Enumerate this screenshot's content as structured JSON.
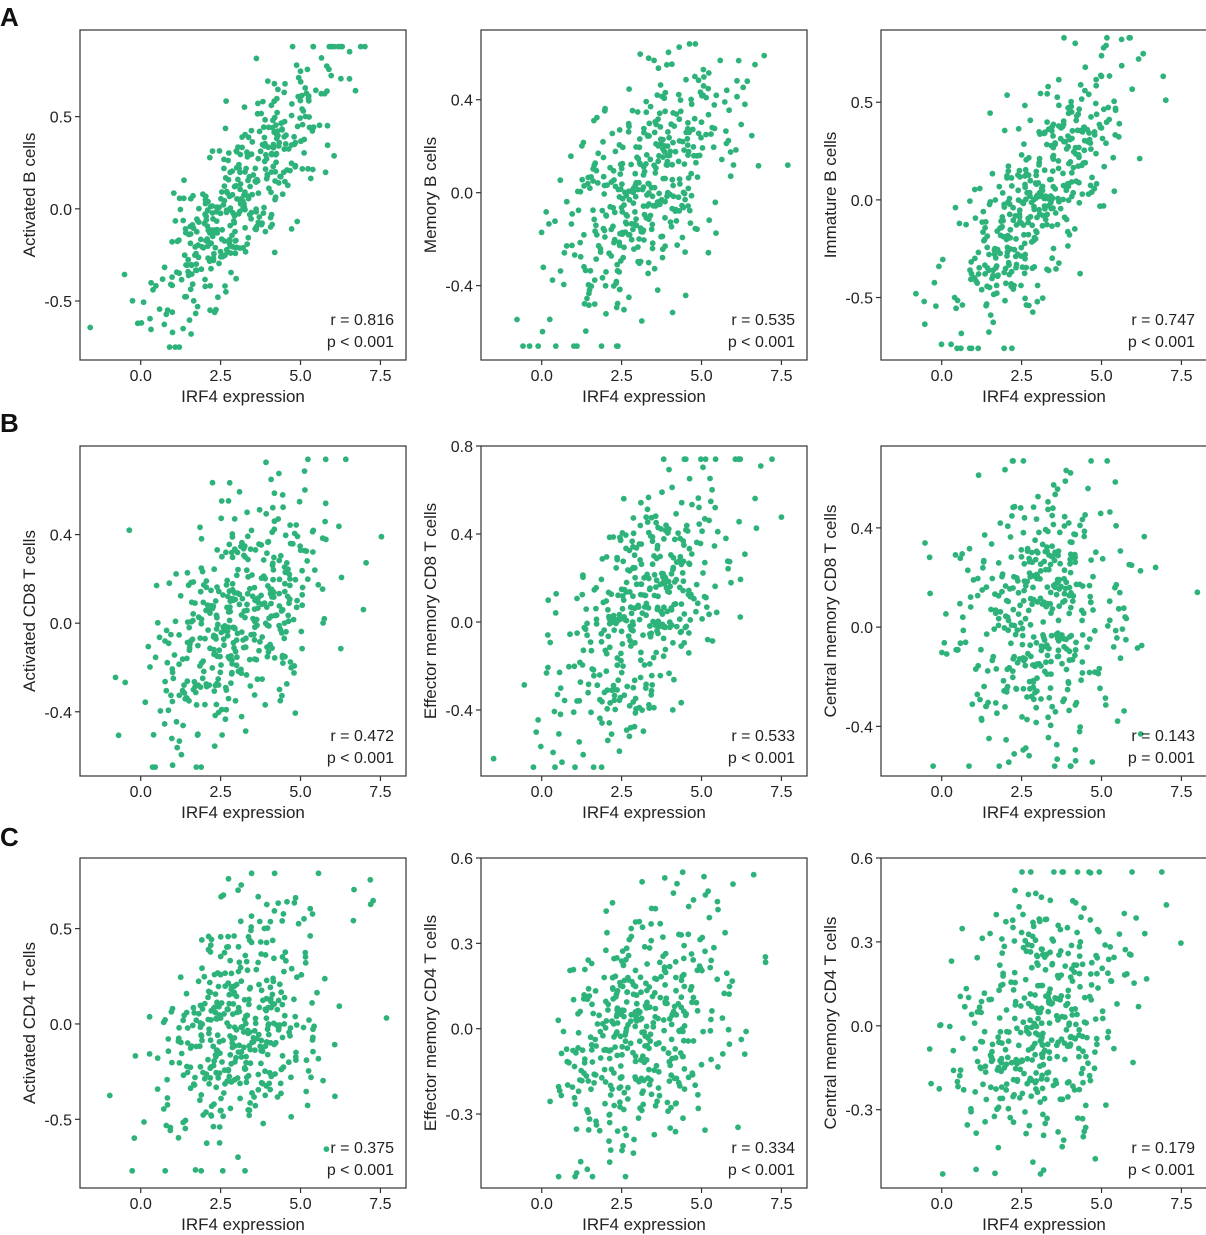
{
  "figure": {
    "row_labels": [
      "A",
      "B",
      "C"
    ],
    "point_color": "#2db37a",
    "n_points_per_panel": 420
  },
  "chart_data": [
    {
      "type": "scatter",
      "panel": "A1",
      "row": 0,
      "col": 0,
      "xlabel": "IRF4 expression",
      "ylabel": "Activated B cells",
      "xlim": [
        -1.9,
        8.3
      ],
      "ylim": [
        -0.82,
        0.97
      ],
      "xticks": [
        0.0,
        2.5,
        5.0,
        7.5
      ],
      "xtick_labels": [
        "0.0",
        "2.5",
        "5.0",
        "7.5"
      ],
      "yticks": [
        -0.5,
        0.0,
        0.5
      ],
      "ytick_labels": [
        "-0.5",
        "0.0",
        "0.5"
      ],
      "r_text": "r = 0.816",
      "p_text": "p < 0.001",
      "r": 0.816,
      "y_min": -0.75,
      "y_max": 0.88,
      "seed": 11
    },
    {
      "type": "scatter",
      "panel": "A2",
      "row": 0,
      "col": 1,
      "xlabel": "IRF4 expression",
      "ylabel": "Memory B cells",
      "xlim": [
        -1.9,
        8.3
      ],
      "ylim": [
        -0.72,
        0.7
      ],
      "xticks": [
        0.0,
        2.5,
        5.0,
        7.5
      ],
      "xtick_labels": [
        "0.0",
        "2.5",
        "5.0",
        "7.5"
      ],
      "yticks": [
        -0.4,
        0.0,
        0.4
      ],
      "ytick_labels": [
        "-0.4",
        "0.0",
        "0.4"
      ],
      "r_text": "r = 0.535",
      "p_text": "p < 0.001",
      "r": 0.535,
      "y_min": -0.66,
      "y_max": 0.64,
      "seed": 23
    },
    {
      "type": "scatter",
      "panel": "A3",
      "row": 0,
      "col": 2,
      "xlabel": "IRF4 expression",
      "ylabel": "Immature B cells",
      "xlim": [
        -1.9,
        8.3
      ],
      "ylim": [
        -0.82,
        0.87
      ],
      "xticks": [
        0.0,
        2.5,
        5.0,
        7.5
      ],
      "xtick_labels": [
        "0.0",
        "2.5",
        "5.0",
        "7.5"
      ],
      "yticks": [
        -0.5,
        0.0,
        0.5
      ],
      "ytick_labels": [
        "-0.5",
        "0.0",
        "0.5"
      ],
      "r_text": "r = 0.747",
      "p_text": "p < 0.001",
      "r": 0.747,
      "y_min": -0.76,
      "y_max": 0.83,
      "seed": 37
    },
    {
      "type": "scatter",
      "panel": "B1",
      "row": 1,
      "col": 0,
      "xlabel": "IRF4 expression",
      "ylabel": "Activated CD8 T cells",
      "xlim": [
        -1.9,
        8.3
      ],
      "ylim": [
        -0.69,
        0.8
      ],
      "xticks": [
        0.0,
        2.5,
        5.0,
        7.5
      ],
      "xtick_labels": [
        "0.0",
        "2.5",
        "5.0",
        "7.5"
      ],
      "yticks": [
        -0.4,
        0.0,
        0.4
      ],
      "ytick_labels": [
        "-0.4",
        "0.0",
        "0.4"
      ],
      "r_text": "r = 0.472",
      "p_text": "p < 0.001",
      "r": 0.472,
      "y_min": -0.65,
      "y_max": 0.74,
      "seed": 41
    },
    {
      "type": "scatter",
      "panel": "B2",
      "row": 1,
      "col": 1,
      "xlabel": "IRF4 expression",
      "ylabel": "Effector memory CD8 T cells",
      "xlim": [
        -1.9,
        8.3
      ],
      "ylim": [
        -0.7,
        0.8
      ],
      "xticks": [
        0.0,
        2.5,
        5.0,
        7.5
      ],
      "xtick_labels": [
        "0.0",
        "2.5",
        "5.0",
        "7.5"
      ],
      "yticks": [
        -0.4,
        0.0,
        0.4,
        0.8
      ],
      "ytick_labels": [
        "-0.4",
        "0.0",
        "0.4",
        "0.8"
      ],
      "r_text": "r = 0.533",
      "p_text": "p < 0.001",
      "r": 0.533,
      "y_min": -0.66,
      "y_max": 0.74,
      "seed": 53
    },
    {
      "type": "scatter",
      "panel": "B3",
      "row": 1,
      "col": 2,
      "xlabel": "IRF4 expression",
      "ylabel": "Central memory CD8 T cells",
      "xlim": [
        -1.9,
        8.3
      ],
      "ylim": [
        -0.6,
        0.73
      ],
      "xticks": [
        0.0,
        2.5,
        5.0,
        7.5
      ],
      "xtick_labels": [
        "0.0",
        "2.5",
        "5.0",
        "7.5"
      ],
      "yticks": [
        -0.4,
        0.0,
        0.4
      ],
      "ytick_labels": [
        "-0.4",
        "0.0",
        "0.4"
      ],
      "r_text": "r = 0.143",
      "p_text": "p = 0.001",
      "r": 0.143,
      "y_min": -0.56,
      "y_max": 0.67,
      "seed": 67
    },
    {
      "type": "scatter",
      "panel": "C1",
      "row": 2,
      "col": 0,
      "xlabel": "IRF4 expression",
      "ylabel": "Activated CD4 T cells",
      "xlim": [
        -1.9,
        8.3
      ],
      "ylim": [
        -0.86,
        0.87
      ],
      "xticks": [
        0.0,
        2.5,
        5.0,
        7.5
      ],
      "xtick_labels": [
        "0.0",
        "2.5",
        "5.0",
        "7.5"
      ],
      "yticks": [
        -0.5,
        0.0,
        0.5
      ],
      "ytick_labels": [
        "-0.5",
        "0.0",
        "0.5"
      ],
      "r_text": "r = 0.375",
      "p_text": "p < 0.001",
      "r": 0.375,
      "y_min": -0.77,
      "y_max": 0.79,
      "seed": 71
    },
    {
      "type": "scatter",
      "panel": "C2",
      "row": 2,
      "col": 1,
      "xlabel": "IRF4 expression",
      "ylabel": "Effector memory CD4 T cells",
      "xlim": [
        -1.9,
        8.3
      ],
      "ylim": [
        -0.56,
        0.6
      ],
      "xticks": [
        0.0,
        2.5,
        5.0,
        7.5
      ],
      "xtick_labels": [
        "0.0",
        "2.5",
        "5.0",
        "7.5"
      ],
      "yticks": [
        -0.3,
        0.0,
        0.3,
        0.6
      ],
      "ytick_labels": [
        "-0.3",
        "0.0",
        "0.3",
        "0.6"
      ],
      "r_text": "r = 0.334",
      "p_text": "p < 0.001",
      "r": 0.334,
      "y_min": -0.52,
      "y_max": 0.55,
      "seed": 83
    },
    {
      "type": "scatter",
      "panel": "C3",
      "row": 2,
      "col": 2,
      "xlabel": "IRF4 expression",
      "ylabel": "Central memory CD4 T cells",
      "xlim": [
        -1.9,
        8.3
      ],
      "ylim": [
        -0.58,
        0.6
      ],
      "xticks": [
        0.0,
        2.5,
        5.0,
        7.5
      ],
      "xtick_labels": [
        "0.0",
        "2.5",
        "5.0",
        "7.5"
      ],
      "yticks": [
        -0.3,
        0.0,
        0.3,
        0.6
      ],
      "ytick_labels": [
        "-0.3",
        "0.0",
        "0.3",
        "0.6"
      ],
      "r_text": "r = 0.179",
      "p_text": "p < 0.001",
      "r": 0.179,
      "y_min": -0.53,
      "y_max": 0.55,
      "seed": 97
    }
  ]
}
